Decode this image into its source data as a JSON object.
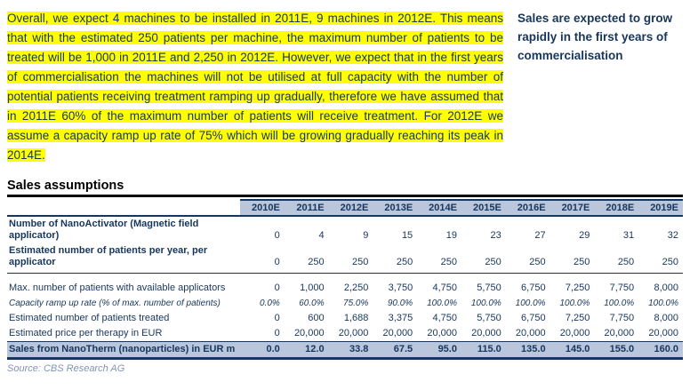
{
  "intro": {
    "paragraph": "Overall, we expect 4 machines to be installed in 2011E, 9 machines in 2012E. This means that with the estimated 250 patients per machine, the maximum number of patients to be treated will be 1,000 in 2011E and 2,250 in 2012E. However, we expect that in the first years of commercialisation the machines will not be utilised at full capacity with the number of potential patients receiving treatment ramping up gradually, therefore we have assumed that in 2011E 60% of the maximum number of patients will receive treatment. For 2012E we assume a capacity ramp up rate of 75% which will be growing gradually reaching its peak in 2014E.",
    "margin_note": "Sales are expected to grow rapidly in the first years of commercialisation"
  },
  "section": {
    "title": "Sales assumptions"
  },
  "table": {
    "columns": [
      "2010E",
      "2011E",
      "2012E",
      "2013E",
      "2014E",
      "2015E",
      "2016E",
      "2017E",
      "2018E",
      "2019E"
    ],
    "rows": [
      {
        "label": "Number of NanoActivator (Magnetic field applicator)",
        "values": [
          "0",
          "4",
          "9",
          "15",
          "19",
          "23",
          "27",
          "29",
          "31",
          "32"
        ],
        "style": "normal"
      },
      {
        "label": "Estimated number of patients per year, per applicator",
        "values": [
          "0",
          "250",
          "250",
          "250",
          "250",
          "250",
          "250",
          "250",
          "250",
          "250"
        ],
        "style": "normal"
      },
      {
        "label": "Max. number of patients with available applicators",
        "values": [
          "0",
          "1,000",
          "2,250",
          "3,750",
          "4,750",
          "5,750",
          "6,750",
          "7,250",
          "7,750",
          "8,000"
        ],
        "style": "normal"
      },
      {
        "label": "Capacity ramp up rate (% of max. number of patients)",
        "values": [
          "0.0%",
          "60.0%",
          "75.0%",
          "90.0%",
          "100.0%",
          "100.0%",
          "100.0%",
          "100.0%",
          "100.0%",
          "100.0%"
        ],
        "style": "italic"
      },
      {
        "label": "Estimated number of patients treated",
        "values": [
          "0",
          "600",
          "1,688",
          "3,375",
          "4,750",
          "5,750",
          "6,750",
          "7,250",
          "7,750",
          "8,000"
        ],
        "style": "normal"
      },
      {
        "label": "Estimated price per therapy in EUR",
        "values": [
          "0",
          "20,000",
          "20,000",
          "20,000",
          "20,000",
          "20,000",
          "20,000",
          "20,000",
          "20,000",
          "20,000"
        ],
        "style": "normal"
      },
      {
        "label": "Sales from NanoTherm (nanoparticles) in EUR m",
        "values": [
          "0.0",
          "12.0",
          "33.8",
          "67.5",
          "95.0",
          "115.0",
          "135.0",
          "145.0",
          "155.0",
          "160.0"
        ],
        "style": "highlight"
      }
    ],
    "source": "Source: CBS Research AG"
  },
  "colors": {
    "highlight_yellow": "#FFFF00",
    "table_header_fill": "#B9C6DB",
    "navy_text": "#17365D",
    "title_rule": "#000000",
    "source_text": "#8094B4"
  }
}
